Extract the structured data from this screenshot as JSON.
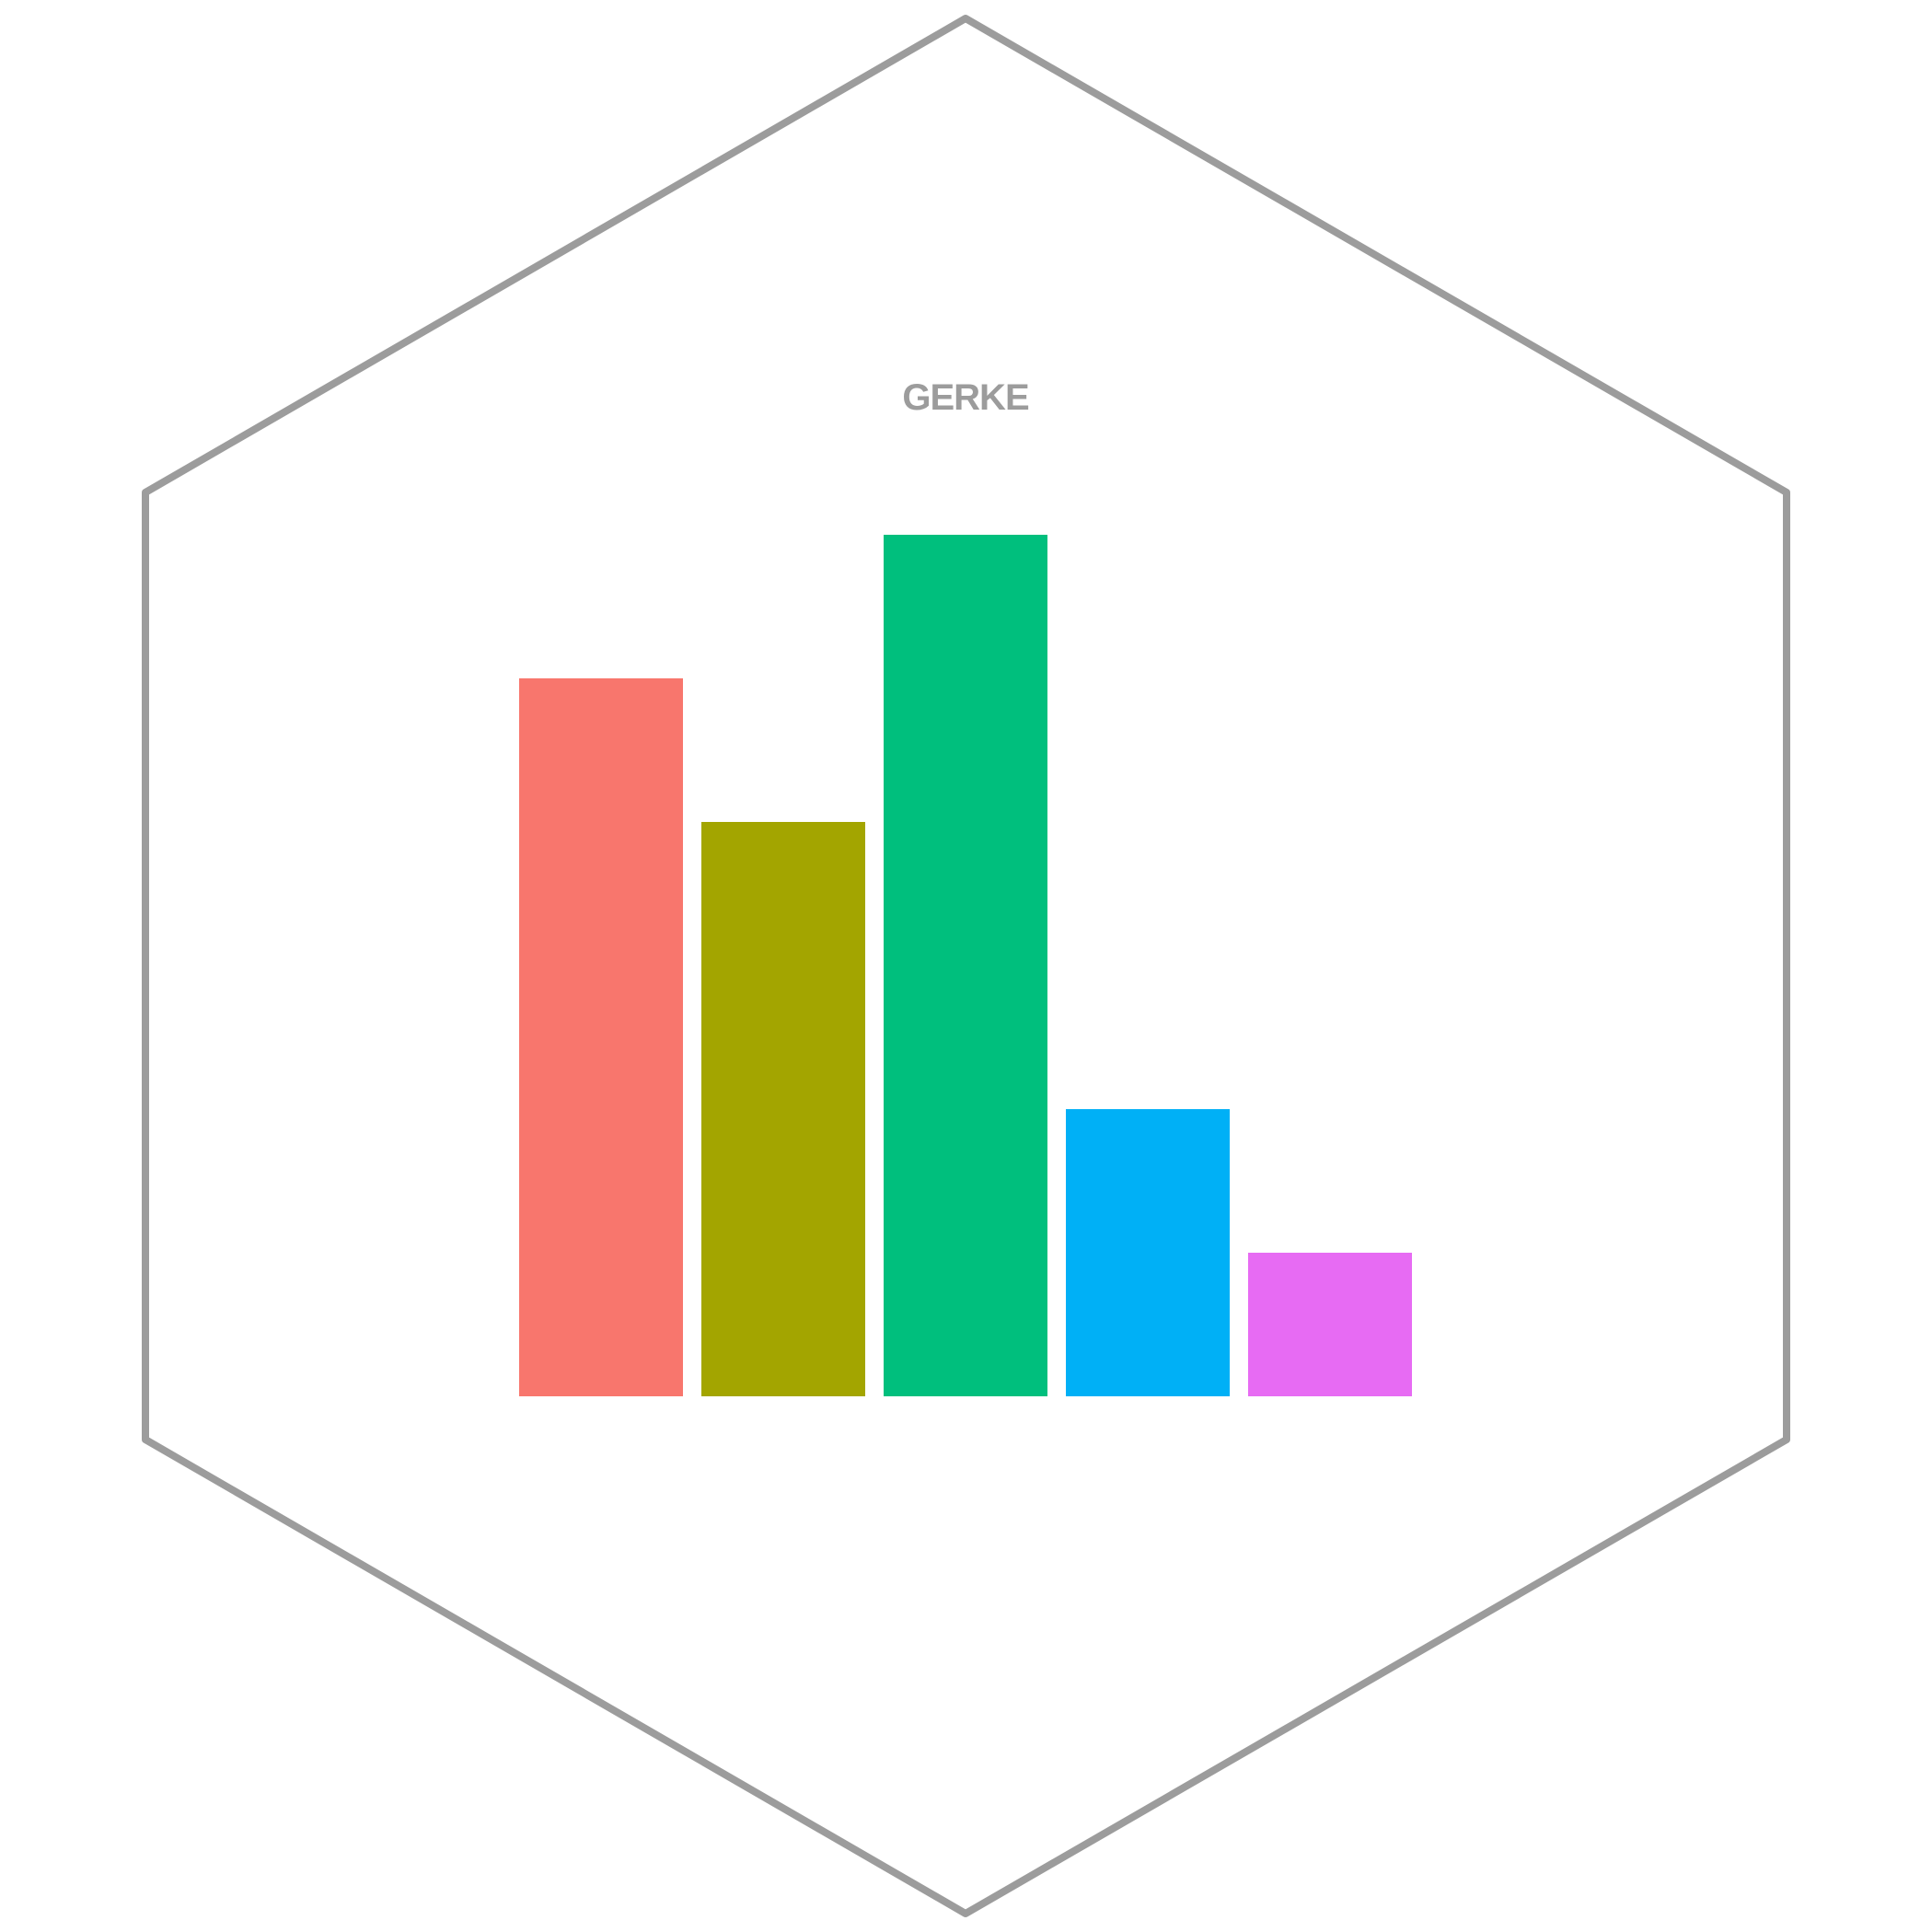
{
  "logo": {
    "text": "GERKE",
    "outline_color": "#9c9c9c",
    "text_color": "#9c9c9c",
    "background": "#ffffff"
  },
  "bars": [
    {
      "value": 5,
      "color": "#f8766d"
    },
    {
      "value": 4,
      "color": "#a3a500"
    },
    {
      "value": 6,
      "color": "#00bf7d"
    },
    {
      "value": 2,
      "color": "#00b0f6"
    },
    {
      "value": 1,
      "color": "#e76bf3"
    }
  ]
}
